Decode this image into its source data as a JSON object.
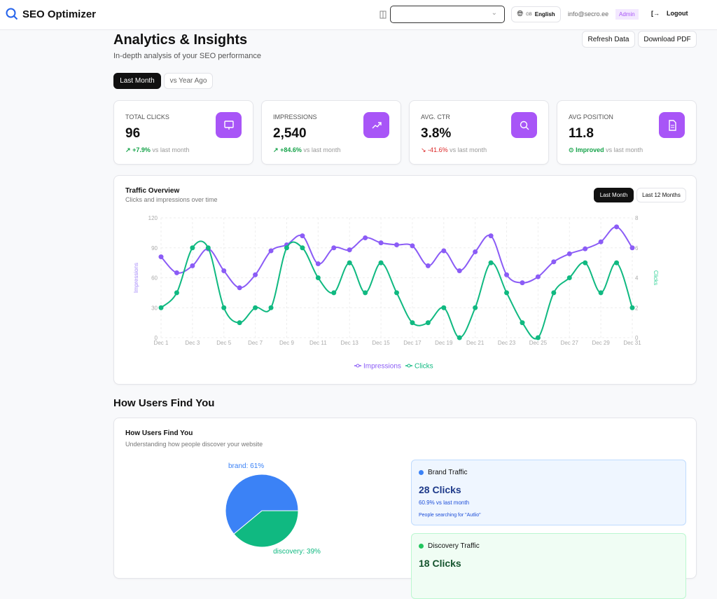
{
  "header": {
    "app_name": "SEO Optimizer",
    "site_select_value": "",
    "language_flag": "GB",
    "language": "English",
    "email": "info@secro.ee",
    "role_badge": "Admin",
    "logout": "Logout"
  },
  "page": {
    "title": "Analytics & Insights",
    "subtitle": "In-depth analysis of your SEO performance",
    "refresh": "Refresh Data",
    "download": "Download PDF",
    "periods": [
      "Last Month",
      "vs Year Ago"
    ],
    "active_period": "Last Month"
  },
  "stats": [
    {
      "label": "TOTAL CLICKS",
      "value": "96",
      "change": "+7.9%",
      "suffix": "vs last month",
      "trend": "up",
      "icon": "monitor-icon"
    },
    {
      "label": "IMPRESSIONS",
      "value": "2,540",
      "change": "+84.6%",
      "suffix": "vs last month",
      "trend": "up",
      "icon": "trending-up-icon"
    },
    {
      "label": "AVG. CTR",
      "value": "3.8%",
      "change": "-41.6%",
      "suffix": "vs last month",
      "trend": "down",
      "icon": "search-icon"
    },
    {
      "label": "AVG POSITION",
      "value": "11.8",
      "change": "Improved",
      "suffix": "vs last month",
      "trend": "up",
      "icon": "document-icon"
    }
  ],
  "traffic": {
    "title": "Traffic Overview",
    "subtitle": "Clicks and impressions over time",
    "ranges": [
      "Last Month",
      "Last 12 Months"
    ],
    "active_range": "Last Month"
  },
  "chart_data": {
    "type": "line",
    "x": [
      "Dec 1",
      "Dec 2",
      "Dec 3",
      "Dec 4",
      "Dec 5",
      "Dec 6",
      "Dec 7",
      "Dec 8",
      "Dec 9",
      "Dec 10",
      "Dec 11",
      "Dec 12",
      "Dec 13",
      "Dec 14",
      "Dec 15",
      "Dec 16",
      "Dec 17",
      "Dec 18",
      "Dec 19",
      "Dec 20",
      "Dec 21",
      "Dec 22",
      "Dec 23",
      "Dec 24",
      "Dec 25",
      "Dec 26",
      "Dec 27",
      "Dec 28",
      "Dec 29",
      "Dec 30",
      "Dec 31"
    ],
    "x_tick_labels": [
      "Dec 1",
      "Dec 3",
      "Dec 5",
      "Dec 7",
      "Dec 9",
      "Dec 11",
      "Dec 13",
      "Dec 15",
      "Dec 17",
      "Dec 19",
      "Dec 21",
      "Dec 23",
      "Dec 25",
      "Dec 27",
      "Dec 29",
      "Dec 31"
    ],
    "series": [
      {
        "name": "Impressions",
        "axis": "left",
        "color": "#8b5cf6",
        "values": [
          81,
          65,
          72,
          89,
          67,
          50,
          63,
          87,
          93,
          102,
          74,
          90,
          88,
          100,
          95,
          93,
          92,
          72,
          87,
          67,
          86,
          102,
          63,
          55,
          61,
          76,
          84,
          89,
          96,
          111,
          90
        ]
      },
      {
        "name": "Clicks",
        "axis": "right",
        "color": "#10b981",
        "values": [
          2,
          3,
          6,
          6,
          2,
          1,
          2,
          2,
          6,
          6,
          4,
          3,
          5,
          3,
          5,
          3,
          1,
          1,
          2,
          0,
          2,
          5,
          3,
          1,
          0,
          3,
          4,
          5,
          3,
          5,
          2
        ]
      }
    ],
    "ylabel_left": "Impressions",
    "ylabel_right": "Clicks",
    "ylim_left": [
      0,
      120
    ],
    "yticks_left": [
      "0",
      "30",
      "60",
      "90",
      "120"
    ],
    "ylim_right": [
      0,
      8
    ],
    "yticks_right": [
      "0",
      "2",
      "4",
      "6",
      "8"
    ],
    "grid": true,
    "legend": "bottom"
  },
  "sources": {
    "section_title": "How Users Find You",
    "card_title": "How Users Find You",
    "card_subtitle": "Understanding how people discover your website",
    "pie": [
      {
        "name": "brand",
        "label": "brand: 61%",
        "value": 61,
        "color": "#3b82f6"
      },
      {
        "name": "discovery",
        "label": "discovery: 39%",
        "value": 39,
        "color": "#10b981"
      }
    ],
    "brand": {
      "title": "Brand Traffic",
      "clicks": "28 Clicks",
      "change": "60.9% vs last month",
      "note": "People searching for \"Autlio\""
    },
    "discovery": {
      "title": "Discovery Traffic",
      "clicks": "18 Clicks"
    }
  }
}
